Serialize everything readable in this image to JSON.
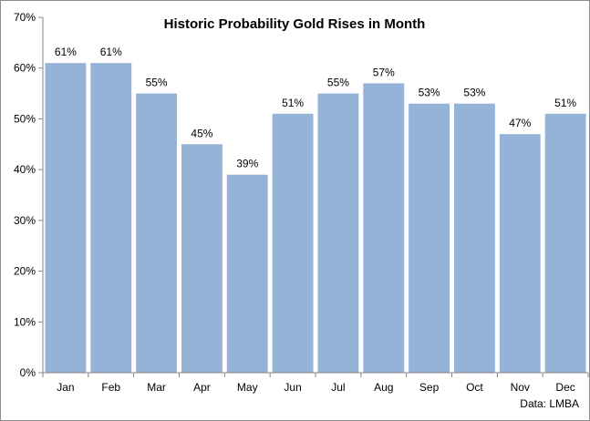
{
  "chart_data": {
    "type": "bar",
    "title": "Historic Probability Gold Rises in Month",
    "categories": [
      "Jan",
      "Feb",
      "Mar",
      "Apr",
      "May",
      "Jun",
      "Jul",
      "Aug",
      "Sep",
      "Oct",
      "Nov",
      "Dec"
    ],
    "values": [
      61,
      61,
      55,
      45,
      39,
      51,
      55,
      57,
      53,
      53,
      47,
      51
    ],
    "data_labels": [
      "61%",
      "61%",
      "55%",
      "45%",
      "39%",
      "51%",
      "55%",
      "57%",
      "53%",
      "53%",
      "47%",
      "51%"
    ],
    "ylim": [
      0,
      70
    ],
    "y_ticks": [
      0,
      10,
      20,
      30,
      40,
      50,
      60,
      70
    ],
    "y_tick_labels": [
      "0%",
      "10%",
      "20%",
      "30%",
      "40%",
      "50%",
      "60%",
      "70%"
    ],
    "xlabel": "",
    "ylabel": "",
    "grid": false,
    "legend": "none",
    "bar_color": "#95b3d7",
    "source_note": "Data: LMBA"
  }
}
